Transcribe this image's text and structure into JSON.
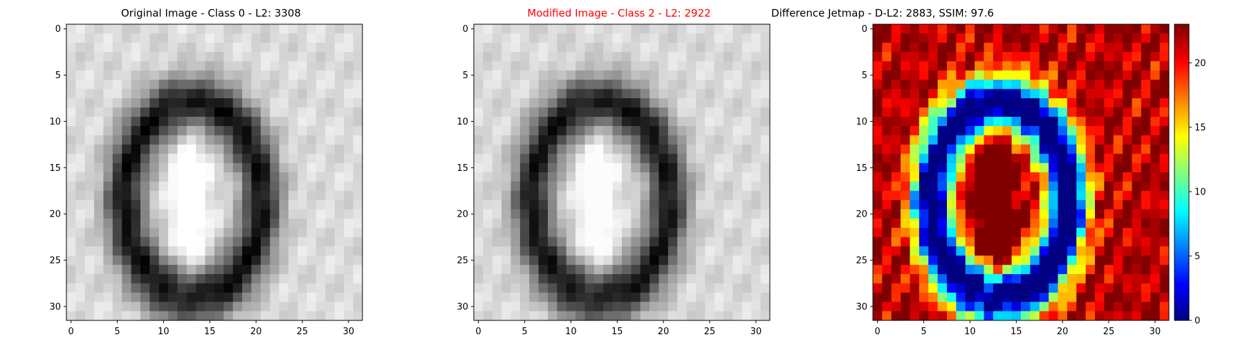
{
  "chart_data": [
    {
      "type": "heatmap",
      "title": "Original Image - Class 0 - L2: 3308",
      "title_color": "#000000",
      "colormap": "gray",
      "grid_size": 32,
      "x_ticks": [
        0,
        5,
        10,
        15,
        20,
        25,
        30
      ],
      "y_ticks": [
        0,
        5,
        10,
        15,
        20,
        25,
        30
      ],
      "xlim": [
        -0.5,
        31.5
      ],
      "ylim": [
        31.5,
        -0.5
      ]
    },
    {
      "type": "heatmap",
      "title": "Modified Image - Class 2 - L2: 2922",
      "title_color": "#ff0000",
      "colormap": "gray",
      "grid_size": 32,
      "x_ticks": [
        0,
        5,
        10,
        15,
        20,
        25,
        30
      ],
      "y_ticks": [
        0,
        5,
        10,
        15,
        20,
        25,
        30
      ],
      "xlim": [
        -0.5,
        31.5
      ],
      "ylim": [
        31.5,
        -0.5
      ]
    },
    {
      "type": "heatmap",
      "title": "Difference Jetmap - D-L2: 2883, SSIM: 97.6",
      "title_color": "#000000",
      "colormap": "jet",
      "grid_size": 32,
      "x_ticks": [
        0,
        5,
        10,
        15,
        20,
        25,
        30
      ],
      "y_ticks": [
        0,
        5,
        10,
        15,
        20,
        25,
        30
      ],
      "xlim": [
        -0.5,
        31.5
      ],
      "ylim": [
        31.5,
        -0.5
      ],
      "colorbar": {
        "range": [
          0,
          23
        ],
        "ticks": [
          0,
          5,
          10,
          15,
          20
        ]
      }
    }
  ]
}
